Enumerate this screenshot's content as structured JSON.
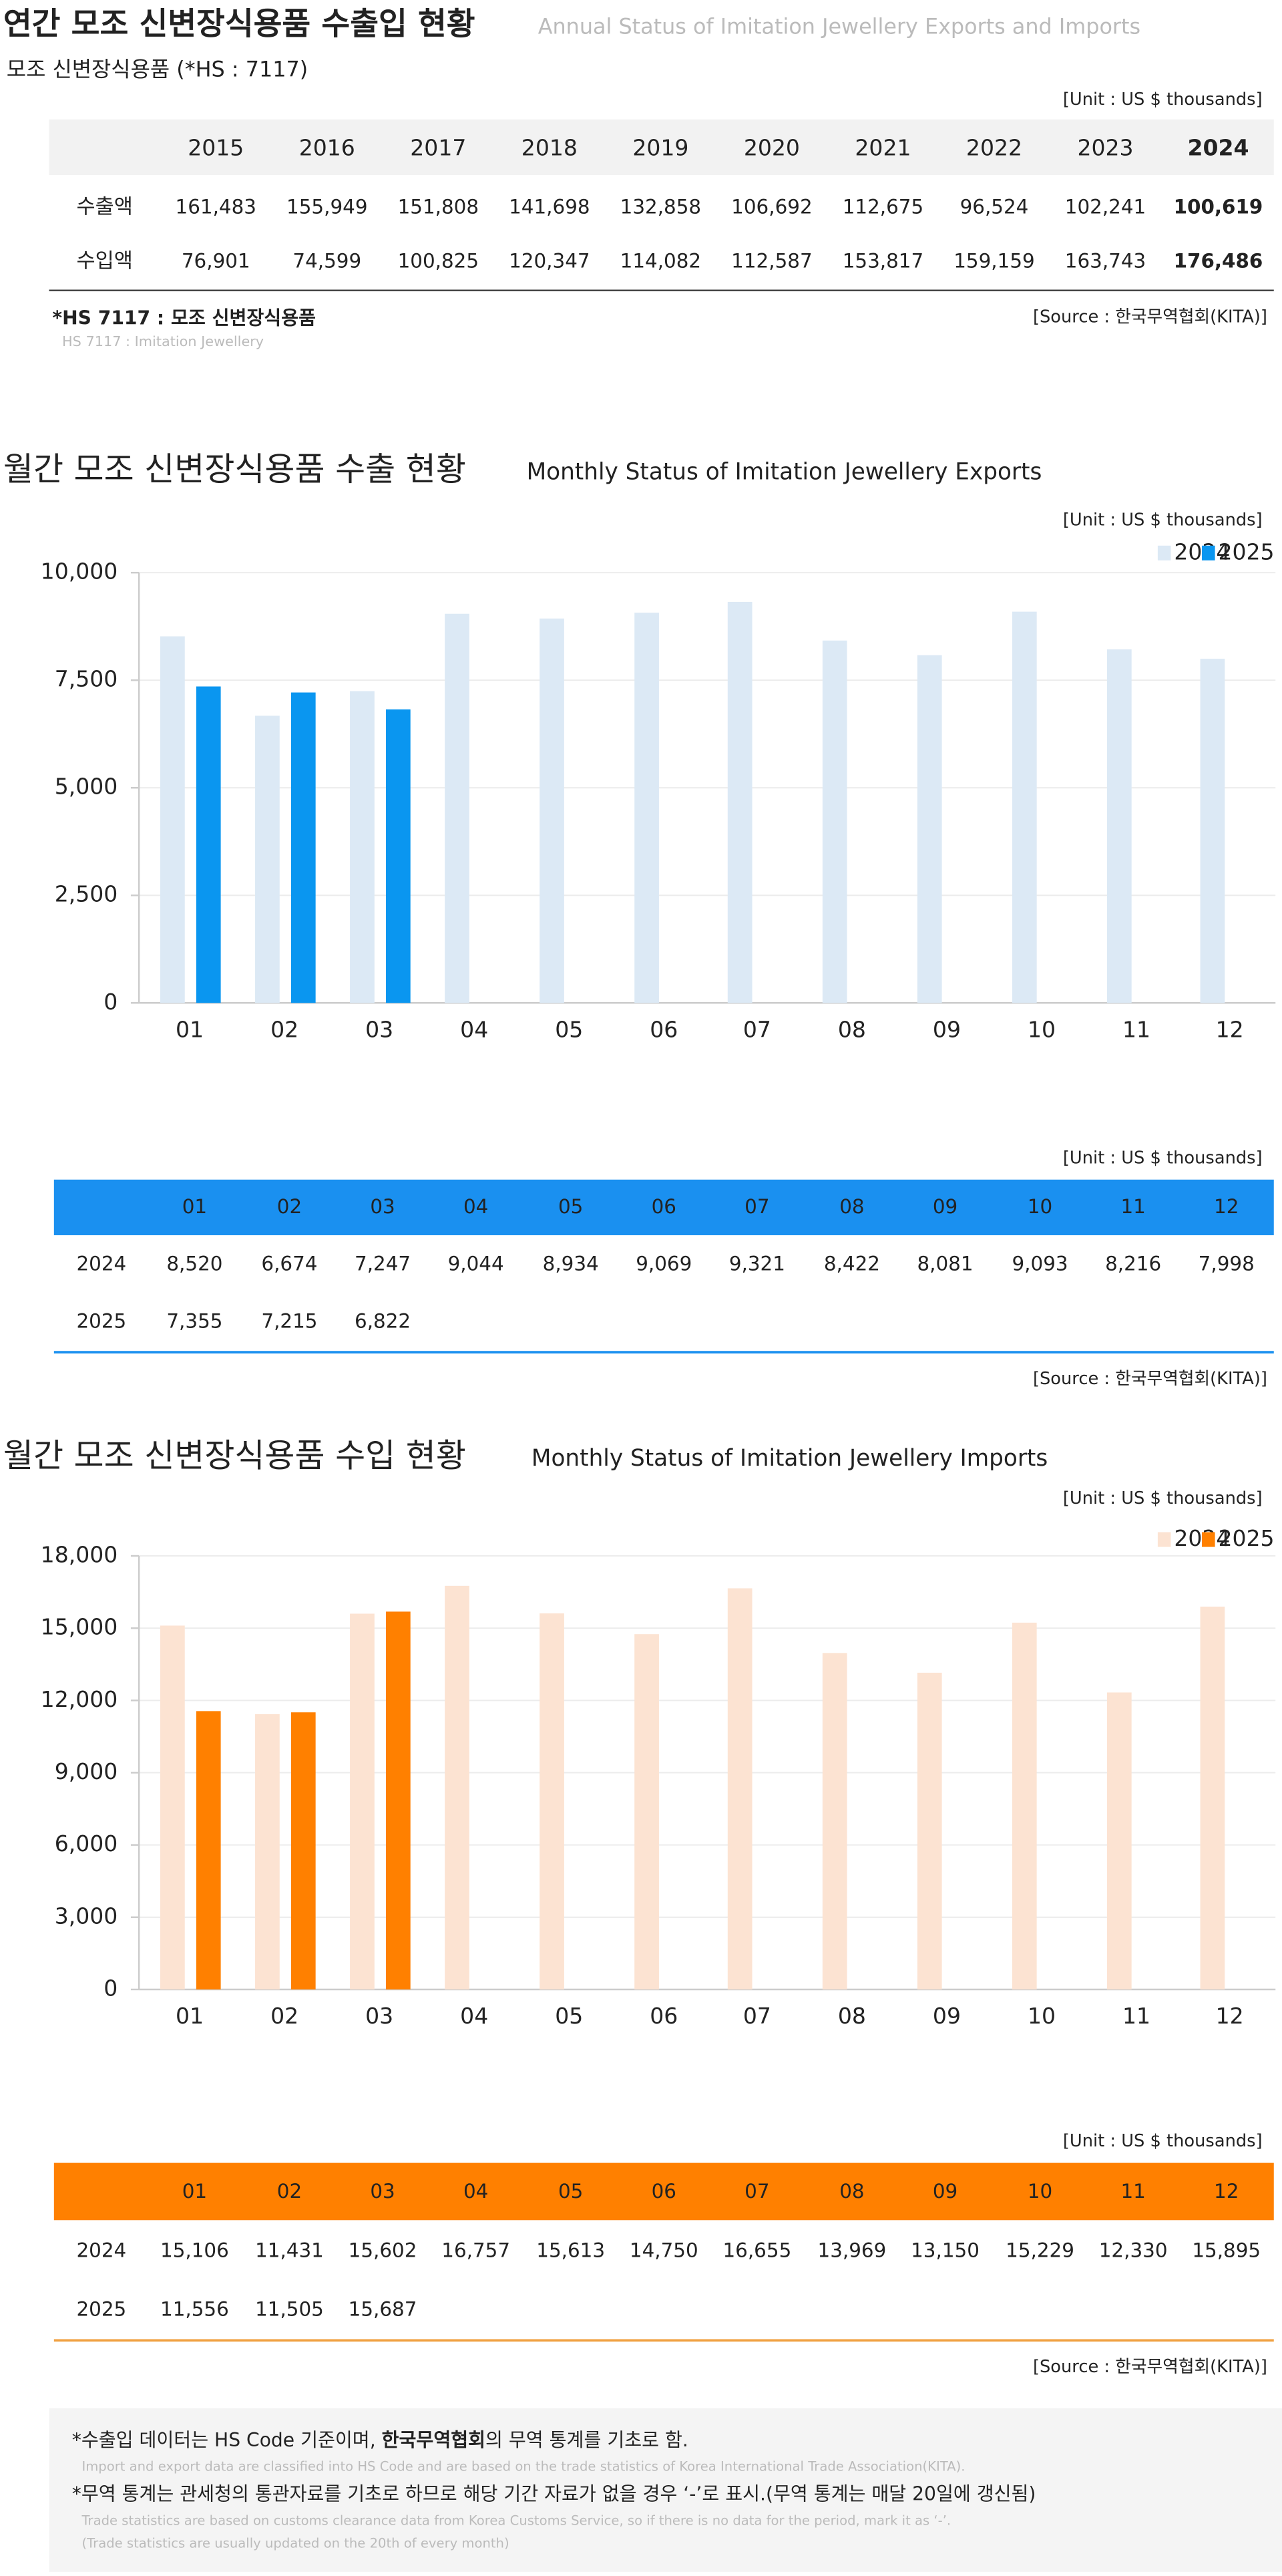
{
  "annual": {
    "title": "연간 모조 신변장식용품 수출입 현황",
    "subtitle": "Annual Status of Imitation Jewellery Exports and Imports",
    "product": "모조 신변장식용품 (*HS : 7117)",
    "unit": "[Unit : US $ thousands]",
    "years": [
      "2015",
      "2016",
      "2017",
      "2018",
      "2019",
      "2020",
      "2021",
      "2022",
      "2023",
      "2024"
    ],
    "rows": [
      {
        "label": "수출액",
        "cells": [
          "161,483",
          "155,949",
          "151,808",
          "141,698",
          "132,858",
          "106,692",
          "112,675",
          "96,524",
          "102,241",
          "100,619"
        ]
      },
      {
        "label": "수입액",
        "cells": [
          "76,901",
          "74,599",
          "100,825",
          "120,347",
          "114,082",
          "112,587",
          "153,817",
          "159,159",
          "163,743",
          "176,486"
        ]
      }
    ],
    "footnote": "*HS 7117 : 모조 신변장식용품",
    "footnote_en": "HS 7117 : Imitation Jewellery",
    "source": "[Source : 한국무역협회(KITA)]"
  },
  "export": {
    "chart": {
      "type": "bar",
      "title": "월간 모조 신변장식용품 수출 현황",
      "subtitle": "Monthly Status of Imitation Jewellery Exports",
      "unit": "[Unit : US $ thousands]",
      "categories": [
        "01",
        "02",
        "03",
        "04",
        "05",
        "06",
        "07",
        "08",
        "09",
        "10",
        "11",
        "12"
      ],
      "series": [
        {
          "name": "2024",
          "color": "#dce9f5",
          "values": [
            8520,
            6674,
            7247,
            9044,
            8934,
            9069,
            9321,
            8422,
            8081,
            9093,
            8216,
            7998
          ]
        },
        {
          "name": "2025",
          "color": "#0a96f0",
          "values": [
            7355,
            7215,
            6822,
            null,
            null,
            null,
            null,
            null,
            null,
            null,
            null,
            null
          ]
        }
      ],
      "ylim": [
        0,
        10000
      ],
      "yticks": [
        0,
        {
          "value": 2500,
          "label": "2,500"
        },
        {
          "value": 5000,
          "label": "5,000"
        },
        {
          "value": 7500,
          "label": "7,500"
        },
        {
          "value": 10000,
          "label": "10,000"
        }
      ],
      "grid": true,
      "legend": "top-right"
    },
    "table": {
      "unit": "[Unit : US $ thousands]",
      "header": [
        "01",
        "02",
        "03",
        "04",
        "05",
        "06",
        "07",
        "08",
        "09",
        "10",
        "11",
        "12"
      ],
      "rows": [
        {
          "label": "2024",
          "cells": [
            "8,520",
            "6,674",
            "7,247",
            "9,044",
            "8,934",
            "9,069",
            "9,321",
            "8,422",
            "8,081",
            "9,093",
            "8,216",
            "7,998"
          ]
        },
        {
          "label": "2025",
          "cells": [
            "7,355",
            "7,215",
            "6,822"
          ]
        }
      ],
      "source": "[Source : 한국무역협회(KITA)]"
    }
  },
  "import": {
    "chart": {
      "type": "bar",
      "title": "월간 모조 신변장식용품 수입 현황",
      "subtitle": "Monthly Status of Imitation Jewellery Imports",
      "unit": "[Unit : US $ thousands]",
      "categories": [
        "01",
        "02",
        "03",
        "04",
        "05",
        "06",
        "07",
        "08",
        "09",
        "10",
        "11",
        "12"
      ],
      "series": [
        {
          "name": "2024",
          "color": "#fce3d2",
          "values": [
            15106,
            11431,
            15602,
            16757,
            15613,
            14750,
            16655,
            13969,
            13150,
            15229,
            12330,
            15895
          ]
        },
        {
          "name": "2025",
          "color": "#ff8000",
          "values": [
            11556,
            11505,
            15687,
            null,
            null,
            null,
            null,
            null,
            null,
            null,
            null,
            null
          ]
        }
      ],
      "ylim": [
        0,
        18000
      ],
      "yticks": [
        0,
        {
          "value": 3000,
          "label": "3,000"
        },
        {
          "value": 6000,
          "label": "6,000"
        },
        {
          "value": 9000,
          "label": "9,000"
        },
        {
          "value": 12000,
          "label": "12,000"
        },
        {
          "value": 15000,
          "label": "15,000"
        },
        {
          "value": 18000,
          "label": "18,000"
        }
      ],
      "grid": true,
      "legend": "top-right"
    },
    "table": {
      "unit": "[Unit : US $ thousands]",
      "header": [
        "01",
        "02",
        "03",
        "04",
        "05",
        "06",
        "07",
        "08",
        "09",
        "10",
        "11",
        "12"
      ],
      "rows": [
        {
          "label": "2024",
          "cells": [
            "15,106",
            "11,431",
            "15,602",
            "16,757",
            "15,613",
            "14,750",
            "16,655",
            "13,969",
            "13,150",
            "15,229",
            "12,330",
            "15,895"
          ]
        },
        {
          "label": "2025",
          "cells": [
            "11,556",
            "11,505",
            "15,687"
          ]
        }
      ],
      "source": "[Source : 한국무역협회(KITA)]"
    }
  },
  "notes": {
    "note1_pre": "*수출입 데이터는 HS Code 기준이며, ",
    "note1_bold": "한국무역협회",
    "note1_post": "의 무역 통계를 기초로 함.",
    "note1_en": "Import and export data are classified into HS Code and are based on the trade statistics of Korea International  Trade Association(KITA).",
    "note2": "*무역 통계는 관세청의  통관자료를 기초로 하므로 해당 기간 자료가 없을 경우 ‘-’로 표시.(무역 통계는 매달 20일에 갱신됨)",
    "note2_en1": "Trade statistics are based on customs clearance data from Korea Customs Service, so if there is no data for the period, mark it as ‘-’.",
    "note2_en2": "(Trade statistics are usually updated on the 20th of every month)"
  }
}
